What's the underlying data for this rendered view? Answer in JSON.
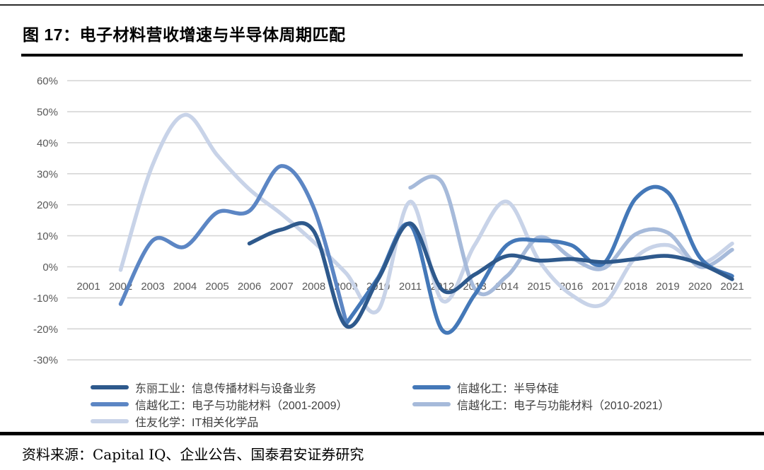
{
  "page": {
    "title": "图 17：电子材料营收增速与半导体周期匹配",
    "source": "资料来源：Capital IQ、企业公告、国泰君安证券研究"
  },
  "chart_data": {
    "type": "line",
    "title": "电子材料营收增速与半导体周期匹配",
    "x_labels": [
      "2001",
      "2002",
      "2003",
      "2004",
      "2005",
      "2006",
      "2007",
      "2008",
      "2009",
      "2010",
      "2011",
      "2012",
      "2013",
      "2014",
      "2015",
      "2016",
      "2017",
      "2018",
      "2019",
      "2020",
      "2021"
    ],
    "x_range": [
      2001,
      2021
    ],
    "y_axis": {
      "min": -30,
      "max": 60,
      "step": 10,
      "format": "percent",
      "tick_labels": [
        "60%",
        "50%",
        "40%",
        "30%",
        "20%",
        "10%",
        "0%",
        "-10%",
        "-20%",
        "-30%"
      ]
    },
    "grid": true,
    "legend_position": "bottom",
    "series": [
      {
        "name": "东丽工业：信息传播材料与设备业务",
        "color": "#2E598C",
        "data": [
          [
            2006,
            7.5
          ],
          [
            2007,
            12
          ],
          [
            2008,
            11.5
          ],
          [
            2009,
            -19
          ],
          [
            2010,
            -4
          ],
          [
            2011,
            14
          ],
          [
            2012,
            -7.5
          ],
          [
            2013,
            -2.5
          ],
          [
            2014,
            3.5
          ],
          [
            2015,
            2
          ],
          [
            2016,
            2.5
          ],
          [
            2017,
            1.5
          ],
          [
            2018,
            2.5
          ],
          [
            2019,
            3.5
          ],
          [
            2020,
            1
          ],
          [
            2021,
            -4
          ]
        ]
      },
      {
        "name": "信越化工：半导体硅",
        "color": "#4478B8",
        "data": [
          [
            2009,
            -18.5
          ],
          [
            2010,
            -3.5
          ],
          [
            2011,
            13.5
          ],
          [
            2012,
            -20.5
          ],
          [
            2013,
            -9
          ],
          [
            2014,
            7
          ],
          [
            2015,
            8.5
          ],
          [
            2016,
            7
          ],
          [
            2017,
            1
          ],
          [
            2018,
            22
          ],
          [
            2019,
            24
          ],
          [
            2020,
            3
          ],
          [
            2021,
            -3
          ]
        ]
      },
      {
        "name": "信越化工：电子与功能材料（2001-2009）",
        "color": "#5C86C4",
        "data": [
          [
            2002,
            -12
          ],
          [
            2003,
            8.5
          ],
          [
            2004,
            6.5
          ],
          [
            2005,
            17.5
          ],
          [
            2006,
            18
          ],
          [
            2007,
            32.5
          ],
          [
            2008,
            19
          ],
          [
            2009,
            -17.5
          ]
        ]
      },
      {
        "name": "信越化工：电子与功能材料（2010-2021）",
        "color": "#A6BADA",
        "data": [
          [
            2011,
            25.5
          ],
          [
            2012,
            27
          ],
          [
            2013,
            -7
          ],
          [
            2014,
            -3
          ],
          [
            2015,
            9.5
          ],
          [
            2016,
            3
          ],
          [
            2017,
            -0.5
          ],
          [
            2018,
            10.5
          ],
          [
            2019,
            11
          ],
          [
            2020,
            0
          ],
          [
            2021,
            5.5
          ]
        ]
      },
      {
        "name": "住友化学：IT相关化学品",
        "color": "#C8D3E8",
        "data": [
          [
            2002,
            -1
          ],
          [
            2003,
            33
          ],
          [
            2004,
            49
          ],
          [
            2005,
            36
          ],
          [
            2006,
            25
          ],
          [
            2007,
            17
          ],
          [
            2008,
            8
          ],
          [
            2009,
            -2
          ],
          [
            2010,
            -14
          ],
          [
            2011,
            21
          ],
          [
            2012,
            -11
          ],
          [
            2013,
            7
          ],
          [
            2014,
            21
          ],
          [
            2015,
            2
          ],
          [
            2016,
            -9
          ],
          [
            2017,
            -12
          ],
          [
            2018,
            3
          ],
          [
            2019,
            7
          ],
          [
            2020,
            1
          ],
          [
            2021,
            7.5
          ]
        ]
      }
    ],
    "legend_rows": [
      [
        0,
        1
      ],
      [
        2,
        3
      ],
      [
        4
      ]
    ]
  }
}
